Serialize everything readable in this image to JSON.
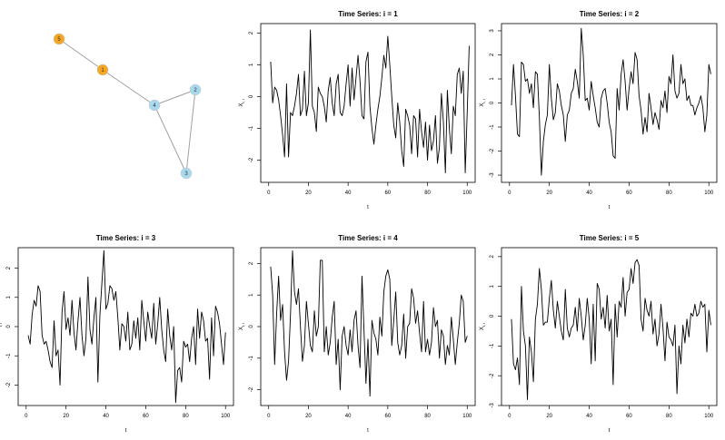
{
  "network": {
    "nodes": [
      {
        "id": "1",
        "label": "1",
        "color": "#f5a623"
      },
      {
        "id": "2",
        "label": "2",
        "color": "#a8d8ee"
      },
      {
        "id": "3",
        "label": "3",
        "color": "#a8d8ee"
      },
      {
        "id": "4",
        "label": "4",
        "color": "#a8d8ee"
      },
      {
        "id": "5",
        "label": "5",
        "color": "#f5a623"
      }
    ],
    "edges": [
      [
        "5",
        "1"
      ],
      [
        "1",
        "4"
      ],
      [
        "4",
        "2"
      ],
      [
        "4",
        "3"
      ],
      [
        "2",
        "3"
      ]
    ]
  },
  "chart_data": [
    {
      "type": "line",
      "title": "Time Series: i = 1",
      "xlabel": "t",
      "ylabel": "X",
      "ylabel_sub": "t, i",
      "xlim": [
        0,
        100
      ],
      "ylim": [
        -2.7,
        2.3
      ],
      "xticks": [
        0,
        20,
        40,
        60,
        80,
        100
      ],
      "yticks": [
        -2,
        -1,
        0,
        1,
        2
      ],
      "values": [
        1.1,
        -0.2,
        0.3,
        0.2,
        -0.1,
        -0.6,
        -1.2,
        -1.9,
        0.4,
        -1.9,
        -0.5,
        -0.6,
        -0.3,
        0.1,
        0.7,
        -0.6,
        -0.4,
        0.8,
        -0.6,
        -0.2,
        2.1,
        -0.3,
        -0.5,
        -1.1,
        0.3,
        0.1,
        0.0,
        -0.3,
        -0.8,
        0.2,
        0.6,
        -0.2,
        -0.6,
        0.4,
        0.7,
        -0.5,
        -0.6,
        -0.3,
        0.4,
        1.0,
        -0.3,
        0.9,
        -0.1,
        0.6,
        1.3,
        0.5,
        -0.6,
        -0.7,
        1.1,
        1.4,
        -0.3,
        -1.0,
        -1.5,
        -0.9,
        -0.4,
        0.0,
        0.6,
        1.3,
        0.9,
        1.9,
        1.0,
        0.0,
        -0.9,
        -1.3,
        -0.2,
        -0.8,
        -1.7,
        -2.2,
        -0.4,
        -0.6,
        -0.9,
        -1.8,
        -0.6,
        -0.7,
        -1.9,
        -0.4,
        -1.1,
        -1.6,
        -0.8,
        -2.0,
        -0.9,
        -1.7,
        -1.4,
        -0.6,
        -2.1,
        -1.6,
        0.1,
        -0.8,
        -2.4,
        0.2,
        -1.0,
        -1.8,
        -0.3,
        -0.6,
        0.7,
        0.9,
        0.1,
        0.8,
        -2.4,
        -0.5,
        1.6
      ]
    },
    {
      "type": "line",
      "title": "Time Series: i = 2",
      "xlabel": "t",
      "ylabel": "X",
      "ylabel_sub": "t, i",
      "xlim": [
        0,
        100
      ],
      "ylim": [
        -3.3,
        3.3
      ],
      "xticks": [
        0,
        20,
        40,
        60,
        80,
        100
      ],
      "yticks": [
        -3,
        -2,
        -1,
        0,
        1,
        2,
        3
      ],
      "values": [
        -0.1,
        1.6,
        0.3,
        -1.3,
        -1.4,
        1.7,
        1.6,
        0.9,
        1.0,
        0.4,
        0.8,
        -0.2,
        1.3,
        1.2,
        -0.6,
        -3.0,
        -1.6,
        -0.9,
        -0.5,
        1.6,
        0.2,
        -0.7,
        -0.4,
        0.8,
        0.5,
        -0.1,
        -0.5,
        -1.6,
        -0.5,
        -0.3,
        0.4,
        0.6,
        1.4,
        0.9,
        0.2,
        3.1,
        2.0,
        0.1,
        0.2,
        -0.3,
        0.9,
        0.3,
        -0.2,
        -0.8,
        -1.0,
        0.2,
        0.5,
        0.6,
        0.0,
        -0.8,
        -1.2,
        -2.2,
        -2.3,
        0.6,
        -0.3,
        1.2,
        1.8,
        0.9,
        -0.3,
        0.6,
        1.3,
        0.8,
        2.1,
        1.8,
        0.3,
        -0.3,
        -1.3,
        -0.6,
        -1.2,
        0.4,
        -0.2,
        -0.9,
        -0.4,
        -0.7,
        -1.1,
        0.1,
        -0.2,
        0.5,
        -0.4,
        1.1,
        0.8,
        2.0,
        0.5,
        0.2,
        0.4,
        1.6,
        0.8,
        1.0,
        0.1,
        0.3,
        -0.1,
        -0.1,
        -0.5,
        -0.2,
        0.0,
        0.3,
        -0.2,
        -1.2,
        -0.5,
        1.6,
        1.2
      ]
    },
    {
      "type": "line",
      "title": "Time Series: i = 3",
      "xlabel": "t",
      "ylabel": "X",
      "ylabel_sub": "t, i",
      "xlim": [
        0,
        100
      ],
      "ylim": [
        -2.7,
        2.7
      ],
      "xticks": [
        0,
        20,
        40,
        60,
        80,
        100
      ],
      "yticks": [
        -2,
        -1,
        0,
        1,
        2
      ],
      "values": [
        -0.3,
        -0.6,
        0.4,
        0.9,
        0.7,
        1.4,
        1.2,
        -0.3,
        -0.6,
        -0.5,
        -0.8,
        -1.2,
        -1.4,
        0.2,
        -1.0,
        -0.8,
        -2.0,
        0.5,
        1.2,
        -0.1,
        0.3,
        -0.3,
        0.9,
        -0.2,
        -0.8,
        0.2,
        1.0,
        -0.3,
        -1.0,
        -0.4,
        1.7,
        -0.1,
        -0.6,
        0.3,
        1.0,
        -1.9,
        0.4,
        1.5,
        2.6,
        0.6,
        0.8,
        1.4,
        1.3,
        0.9,
        1.2,
        0.3,
        -0.8,
        0.1,
        0.0,
        -0.5,
        0.5,
        -0.8,
        -0.6,
        0.2,
        -0.4,
        0.3,
        -0.8,
        0.9,
        0.2,
        -0.5,
        0.5,
        0.0,
        -0.4,
        0.8,
        -0.6,
        0.1,
        1.0,
        -0.1,
        -0.8,
        -1.2,
        0.6,
        -0.3,
        -0.8,
        0.0,
        -2.6,
        -1.5,
        -1.4,
        -1.9,
        -0.5,
        -0.7,
        -0.6,
        -1.2,
        -0.4,
        0.0,
        -1.3,
        0.6,
        -0.4,
        0.5,
        0.2,
        -0.5,
        -0.4,
        -1.8,
        0.3,
        -1.0,
        0.7,
        0.5,
        0.1,
        -0.6,
        -1.3,
        -0.2
      ]
    },
    {
      "type": "line",
      "title": "Time Series: i = 4",
      "xlabel": "t",
      "ylabel": "X",
      "ylabel_sub": "t, i",
      "xlim": [
        0,
        100
      ],
      "ylim": [
        -2.5,
        2.5
      ],
      "xticks": [
        0,
        20,
        40,
        60,
        80,
        100
      ],
      "yticks": [
        -2,
        -1,
        0,
        1,
        2
      ],
      "values": [
        1.9,
        1.0,
        -1.2,
        0.4,
        1.6,
        0.2,
        0.7,
        -0.8,
        -1.7,
        -1.1,
        0.4,
        2.4,
        1.1,
        0.7,
        1.2,
        0.0,
        -1.1,
        -0.6,
        0.8,
        0.1,
        -0.6,
        -0.8,
        0.5,
        -0.3,
        0.0,
        2.1,
        2.1,
        -0.8,
        0.0,
        -0.9,
        -0.5,
        0.3,
        0.8,
        -1.2,
        -0.4,
        -2.0,
        -0.3,
        0.0,
        -0.6,
        -0.9,
        -0.1,
        -0.8,
        0.2,
        0.5,
        -0.6,
        -1.3,
        1.6,
        -0.1,
        -1.8,
        -0.4,
        -2.2,
        0.2,
        -0.2,
        -0.4,
        -0.9,
        0.3,
        -0.3,
        1.1,
        1.6,
        1.8,
        1.5,
        -0.6,
        0.2,
        1.1,
        -0.5,
        -0.9,
        -0.6,
        0.4,
        -1.0,
        0.0,
        0.1,
        1.2,
        0.9,
        0.1,
        0.5,
        -0.2,
        -0.8,
        0.8,
        -0.8,
        -0.4,
        -0.9,
        -0.5,
        0.6,
        0.0,
        0.2,
        -1.0,
        -0.1,
        -0.3,
        -1.2,
        -0.6,
        -0.9,
        0.3,
        -0.4,
        -1.2,
        -0.5,
        0.1,
        1.0,
        0.8,
        -0.5,
        -0.3
      ]
    },
    {
      "type": "line",
      "title": "Time Series: i = 5",
      "xlabel": "t",
      "ylabel": "X",
      "ylabel_sub": "t, i",
      "xlim": [
        0,
        100
      ],
      "ylim": [
        -3.0,
        2.3
      ],
      "xticks": [
        0,
        20,
        40,
        60,
        80,
        100
      ],
      "yticks": [
        -3,
        -2,
        -1,
        0,
        1,
        2
      ],
      "values": [
        -0.1,
        -1.6,
        -1.8,
        -1.4,
        -2.3,
        1.0,
        -0.5,
        -1.0,
        -2.8,
        -0.7,
        -1.2,
        -2.2,
        -0.1,
        0.4,
        1.6,
        0.9,
        -0.3,
        -0.2,
        -0.2,
        0.6,
        1.2,
        0.2,
        -0.4,
        0.5,
        0.0,
        -0.5,
        -0.8,
        0.9,
        -0.4,
        -0.7,
        -0.4,
        -0.3,
        0.3,
        -0.5,
        0.6,
        0.0,
        -0.8,
        -0.3,
        0.6,
        -0.1,
        -1.6,
        0.4,
        -1.5,
        1.1,
        0.9,
        -0.1,
        0.3,
        -0.4,
        0.7,
        -0.5,
        -0.1,
        -2.3,
        0.4,
        -0.7,
        0.5,
        0.3,
        1.3,
        0.0,
        0.8,
        0.9,
        1.6,
        1.1,
        1.8,
        1.9,
        1.7,
        -0.1,
        -0.5,
        0.6,
        0.2,
        0.0,
        0.5,
        -0.6,
        -0.1,
        -1.0,
        -0.6,
        0.4,
        -0.4,
        -1.5,
        -0.2,
        -0.7,
        -0.8,
        -1.0,
        -0.3,
        -2.6,
        -1.0,
        -1.6,
        -0.3,
        -0.9,
        -0.1,
        -0.7,
        0.1,
        0.0,
        0.4,
        0.0,
        0.1,
        0.5,
        0.3,
        0.4,
        -1.2,
        0.2,
        -0.3
      ]
    }
  ]
}
